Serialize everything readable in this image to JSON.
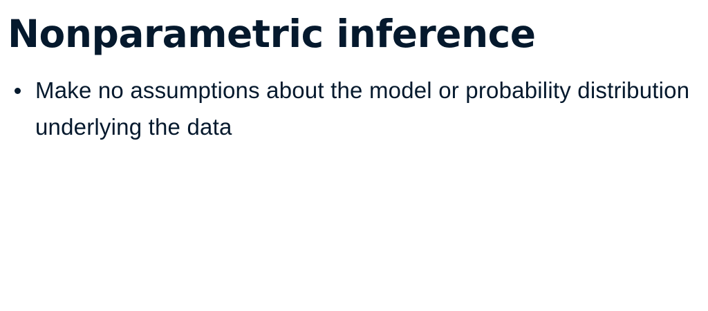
{
  "slide": {
    "title": "Nonparametric inference",
    "bullets": [
      "Make no assumptions about the model or probability distribution underlying the data"
    ]
  },
  "colors": {
    "text": "#05192d",
    "background": "#ffffff"
  }
}
